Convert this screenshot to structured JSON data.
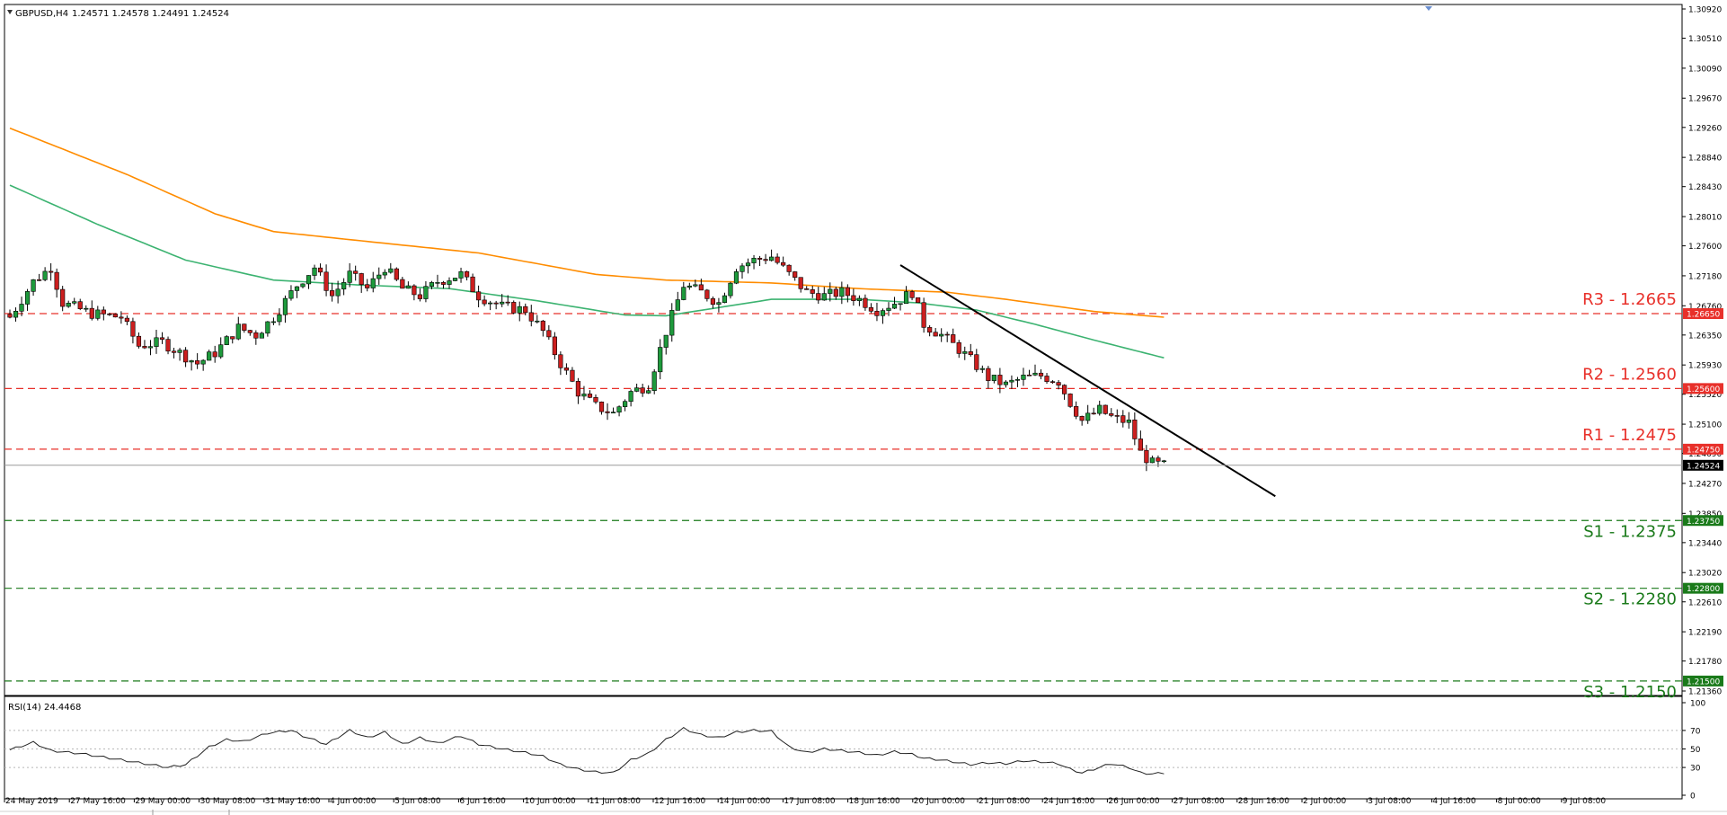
{
  "header": {
    "symbol_label": "GBPUSD,H4",
    "ohlc": "1.24571 1.24578 1.24491 1.24524"
  },
  "rsi_label": "RSI(14) 24.4468",
  "colors": {
    "up_candle": "#1e9a3c",
    "down_candle": "#cc1f1f",
    "ma_slow": "#ff8c00",
    "ma_fast": "#3cb371",
    "resistance": "#e8302a",
    "support": "#1a7a1a",
    "trendline": "#000000"
  },
  "chart_data": {
    "type": "candlestick",
    "symbol": "GBPUSD",
    "timeframe": "H4",
    "price_axis": {
      "ylim": [
        1.2136,
        1.3092
      ],
      "ticks": [
        "1.30920",
        "1.30510",
        "1.30090",
        "1.29670",
        "1.29260",
        "1.28840",
        "1.28430",
        "1.28010",
        "1.27600",
        "1.27180",
        "1.26760",
        "1.26350",
        "1.25930",
        "1.25520",
        "1.25100",
        "1.24690",
        "1.24270",
        "1.23850",
        "1.23440",
        "1.23020",
        "1.22610",
        "1.22190",
        "1.21780",
        "1.21360"
      ]
    },
    "x_ticks": [
      "24 May 2019",
      "27 May 16:00",
      "29 May 00:00",
      "30 May 08:00",
      "31 May 16:00",
      "4 Jun 00:00",
      "5 Jun 08:00",
      "6 Jun 16:00",
      "10 Jun 00:00",
      "11 Jun 08:00",
      "12 Jun 16:00",
      "14 Jun 00:00",
      "17 Jun 08:00",
      "18 Jun 16:00",
      "20 Jun 00:00",
      "21 Jun 08:00",
      "24 Jun 16:00",
      "26 Jun 00:00",
      "27 Jun 08:00",
      "28 Jun 16:00",
      "2 Jul 00:00",
      "3 Jul 08:00",
      "4 Jul 16:00",
      "8 Jul 00:00",
      "9 Jul 08:00"
    ],
    "levels": [
      {
        "label": "R3 - 1.2665",
        "value": 1.2665,
        "tag": "1.26650",
        "kind": "resistance"
      },
      {
        "label": "R2 - 1.2560",
        "value": 1.256,
        "tag": "1.25600",
        "kind": "resistance"
      },
      {
        "label": "R1 - 1.2475",
        "value": 1.2475,
        "tag": "1.24750",
        "kind": "resistance"
      },
      {
        "label": "S1 - 1.2375",
        "value": 1.2375,
        "tag": "1.23750",
        "kind": "support"
      },
      {
        "label": "S2 - 1.2280",
        "value": 1.228,
        "tag": "1.22800",
        "kind": "support"
      },
      {
        "label": "S3 - 1.2150",
        "value": 1.215,
        "tag": "1.21500",
        "kind": "support"
      }
    ],
    "current_price": {
      "value": 1.24524,
      "tag": "1.24524"
    },
    "trendline": {
      "start": [
        152,
        1.2733
      ],
      "end": [
        216,
        1.2409
      ]
    },
    "close_anchors": [
      [
        0,
        1.266
      ],
      [
        4,
        1.271
      ],
      [
        7,
        1.273
      ],
      [
        9,
        1.268
      ],
      [
        14,
        1.2665
      ],
      [
        19,
        1.266
      ],
      [
        22,
        1.262
      ],
      [
        26,
        1.2625
      ],
      [
        29,
        1.261
      ],
      [
        32,
        1.2595
      ],
      [
        35,
        1.261
      ],
      [
        39,
        1.2645
      ],
      [
        42,
        1.2635
      ],
      [
        45,
        1.266
      ],
      [
        49,
        1.2705
      ],
      [
        52,
        1.273
      ],
      [
        55,
        1.269
      ],
      [
        58,
        1.272
      ],
      [
        61,
        1.27
      ],
      [
        64,
        1.273
      ],
      [
        67,
        1.27
      ],
      [
        70,
        1.269
      ],
      [
        73,
        1.271
      ],
      [
        77,
        1.272
      ],
      [
        80,
        1.269
      ],
      [
        84,
        1.2675
      ],
      [
        88,
        1.267
      ],
      [
        91,
        1.264
      ],
      [
        94,
        1.2595
      ],
      [
        97,
        1.2555
      ],
      [
        100,
        1.2535
      ],
      [
        103,
        1.2525
      ],
      [
        106,
        1.2555
      ],
      [
        109,
        1.2565
      ],
      [
        112,
        1.264
      ],
      [
        115,
        1.2705
      ],
      [
        118,
        1.2695
      ],
      [
        121,
        1.268
      ],
      [
        124,
        1.273
      ],
      [
        127,
        1.274
      ],
      [
        130,
        1.2745
      ],
      [
        133,
        1.272
      ],
      [
        136,
        1.2695
      ],
      [
        139,
        1.269
      ],
      [
        142,
        1.2695
      ],
      [
        145,
        1.2685
      ],
      [
        148,
        1.267
      ],
      [
        151,
        1.268
      ],
      [
        154,
        1.2695
      ],
      [
        156,
        1.265
      ],
      [
        159,
        1.2635
      ],
      [
        162,
        1.2615
      ],
      [
        164,
        1.26
      ],
      [
        167,
        1.2575
      ],
      [
        170,
        1.2565
      ],
      [
        173,
        1.2575
      ],
      [
        176,
        1.2578
      ],
      [
        179,
        1.257
      ],
      [
        181,
        1.254
      ],
      [
        183,
        1.2515
      ],
      [
        186,
        1.253
      ],
      [
        188,
        1.252
      ],
      [
        191,
        1.2512
      ],
      [
        193,
        1.247
      ],
      [
        195,
        1.2455
      ],
      [
        197,
        1.2452
      ]
    ],
    "moving_averages": [
      {
        "anchors": [
          [
            0,
            1.2925
          ],
          [
            20,
            1.286
          ],
          [
            35,
            1.2805
          ],
          [
            45,
            1.278
          ],
          [
            60,
            1.2767
          ],
          [
            80,
            1.275
          ],
          [
            100,
            1.272
          ],
          [
            112,
            1.2712
          ],
          [
            130,
            1.2708
          ],
          [
            145,
            1.27
          ],
          [
            160,
            1.2695
          ],
          [
            170,
            1.2685
          ],
          [
            185,
            1.2668
          ],
          [
            197,
            1.266
          ]
        ]
      },
      {
        "anchors": [
          [
            0,
            1.2845
          ],
          [
            15,
            1.279
          ],
          [
            30,
            1.274
          ],
          [
            45,
            1.2712
          ],
          [
            60,
            1.2705
          ],
          [
            75,
            1.27
          ],
          [
            90,
            1.2683
          ],
          [
            105,
            1.2663
          ],
          [
            112,
            1.2662
          ],
          [
            130,
            1.2685
          ],
          [
            145,
            1.2685
          ],
          [
            155,
            1.268
          ],
          [
            165,
            1.267
          ],
          [
            175,
            1.265
          ],
          [
            185,
            1.2628
          ],
          [
            197,
            1.2603
          ]
        ]
      }
    ],
    "rsi": {
      "period": 14,
      "value": 24.4468,
      "ylim": [
        0,
        100
      ],
      "ticks": [
        "100",
        "70",
        "50",
        "30",
        "0"
      ],
      "anchors": [
        [
          0,
          49
        ],
        [
          4,
          57
        ],
        [
          7,
          48
        ],
        [
          12,
          45
        ],
        [
          17,
          40
        ],
        [
          22,
          35
        ],
        [
          27,
          30
        ],
        [
          30,
          33
        ],
        [
          34,
          52
        ],
        [
          37,
          60
        ],
        [
          40,
          58
        ],
        [
          44,
          67
        ],
        [
          48,
          70
        ],
        [
          50,
          64
        ],
        [
          54,
          55
        ],
        [
          58,
          70
        ],
        [
          61,
          62
        ],
        [
          64,
          68
        ],
        [
          67,
          55
        ],
        [
          70,
          62
        ],
        [
          73,
          56
        ],
        [
          77,
          64
        ],
        [
          80,
          55
        ],
        [
          84,
          50
        ],
        [
          88,
          46
        ],
        [
          91,
          42
        ],
        [
          94,
          33
        ],
        [
          97,
          28
        ],
        [
          100,
          25
        ],
        [
          103,
          24
        ],
        [
          106,
          38
        ],
        [
          109,
          45
        ],
        [
          112,
          60
        ],
        [
          115,
          72
        ],
        [
          118,
          65
        ],
        [
          121,
          62
        ],
        [
          124,
          68
        ],
        [
          127,
          70
        ],
        [
          130,
          69
        ],
        [
          133,
          52
        ],
        [
          136,
          46
        ],
        [
          139,
          50
        ],
        [
          142,
          48
        ],
        [
          145,
          46
        ],
        [
          148,
          43
        ],
        [
          151,
          47
        ],
        [
          154,
          44
        ],
        [
          156,
          40
        ],
        [
          159,
          38
        ],
        [
          162,
          35
        ],
        [
          164,
          33
        ],
        [
          167,
          35
        ],
        [
          170,
          34
        ],
        [
          173,
          37
        ],
        [
          176,
          36
        ],
        [
          179,
          34
        ],
        [
          181,
          28
        ],
        [
          183,
          24
        ],
        [
          186,
          30
        ],
        [
          188,
          34
        ],
        [
          191,
          30
        ],
        [
          193,
          24
        ],
        [
          195,
          23
        ],
        [
          197,
          24
        ]
      ]
    }
  }
}
